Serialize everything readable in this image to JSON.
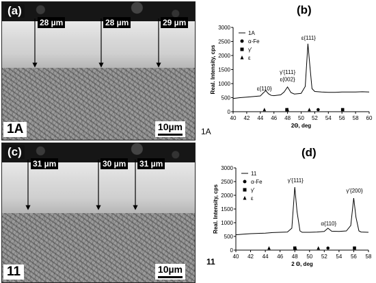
{
  "micrographs": [
    {
      "panel_label": "(a)",
      "measurements": [
        "28 µm",
        "28 µm",
        "29 µm"
      ],
      "sample": "1A",
      "scale_bar": "10µm"
    },
    {
      "panel_label": "(c)",
      "measurements": [
        "31 µm",
        "30 µm",
        "31 µm"
      ],
      "sample": "11",
      "scale_bar": "10µm"
    }
  ],
  "chart_data": [
    {
      "type": "line",
      "panel_label": "(b)",
      "sample_label": "1A",
      "ylabel": "Real. Intensity, cps",
      "xlabel": "2Θ, deg",
      "xlim": [
        40,
        60
      ],
      "ylim": [
        0,
        3000
      ],
      "xticks": [
        40,
        42,
        44,
        46,
        48,
        50,
        52,
        54,
        56,
        58,
        60
      ],
      "yticks": [
        0,
        500,
        1000,
        1500,
        2000,
        2500,
        3000
      ],
      "legend": {
        "placement": "top-left",
        "entries": [
          {
            "label": "1A",
            "marker": "line"
          },
          {
            "label": "α-Fe",
            "marker": "circle"
          },
          {
            "label": "γ'",
            "marker": "square"
          },
          {
            "label": "ε",
            "marker": "triangle"
          }
        ]
      },
      "series": [
        {
          "name": "1A",
          "x": [
            40,
            41,
            42,
            43,
            44,
            44.4,
            44.8,
            45.2,
            45.6,
            46,
            47,
            47.5,
            48,
            48.5,
            49,
            50,
            50.6,
            51.0,
            51.3,
            51.6,
            52,
            53,
            54,
            55,
            56,
            57,
            58,
            59,
            60
          ],
          "y": [
            470,
            500,
            520,
            540,
            560,
            660,
            750,
            640,
            580,
            570,
            600,
            700,
            880,
            680,
            630,
            650,
            900,
            2420,
            1600,
            820,
            720,
            700,
            690,
            690,
            700,
            700,
            700,
            710,
            700
          ]
        }
      ],
      "peak_labels": [
        {
          "text": "ε{110}",
          "x": 44.6,
          "y": 760
        },
        {
          "text": "γ'{111}",
          "x": 48,
          "y": 1340
        },
        {
          "text": "ε{002}",
          "x": 48,
          "y": 1080
        },
        {
          "text": "ε{111}",
          "x": 51.1,
          "y": 2560
        }
      ],
      "phase_markers": [
        {
          "phase": "ε",
          "shape": "triangle",
          "x": 44.6
        },
        {
          "phase": "γ'",
          "shape": "square",
          "x": 47.9
        },
        {
          "phase": "ε",
          "shape": "triangle",
          "x": 48.0
        },
        {
          "phase": "ε",
          "shape": "triangle",
          "x": 51.2
        },
        {
          "phase": "α-Fe",
          "shape": "circle",
          "x": 52.5
        },
        {
          "phase": "γ'",
          "shape": "square",
          "x": 56.1
        }
      ]
    },
    {
      "type": "line",
      "panel_label": "(d)",
      "sample_label": "11",
      "ylabel": "Real. Intensity, cps",
      "xlabel": "2 Θ, deg",
      "xlim": [
        40,
        58
      ],
      "ylim": [
        0,
        3000
      ],
      "xticks": [
        40,
        42,
        44,
        46,
        48,
        50,
        52,
        54,
        56,
        58
      ],
      "yticks": [
        0,
        500,
        1000,
        1500,
        2000,
        2500,
        3000
      ],
      "legend": {
        "placement": "top-left",
        "entries": [
          {
            "label": "11",
            "marker": "line"
          },
          {
            "label": "α-Fe",
            "marker": "circle"
          },
          {
            "label": "γ'",
            "marker": "square"
          },
          {
            "label": "ε",
            "marker": "triangle"
          }
        ]
      },
      "series": [
        {
          "name": "11",
          "x": [
            40,
            41,
            42,
            43,
            44,
            45,
            46,
            47,
            47.6,
            48.0,
            48.3,
            48.7,
            49,
            50,
            51,
            52,
            52.5,
            53,
            54,
            55,
            55.6,
            56.0,
            56.3,
            56.7,
            57,
            58
          ],
          "y": [
            560,
            580,
            600,
            610,
            620,
            640,
            650,
            660,
            800,
            2300,
            1400,
            700,
            650,
            650,
            660,
            680,
            800,
            690,
            680,
            700,
            900,
            1900,
            1200,
            700,
            660,
            650
          ]
        }
      ],
      "peak_labels": [
        {
          "text": "γ'{111}",
          "x": 48.1,
          "y": 2470
        },
        {
          "text": "α{110}",
          "x": 52.6,
          "y": 900
        },
        {
          "text": "γ'{200}",
          "x": 56.1,
          "y": 2100
        }
      ],
      "phase_markers": [
        {
          "phase": "ε",
          "shape": "triangle",
          "x": 44.5
        },
        {
          "phase": "γ'",
          "shape": "square",
          "x": 48.0
        },
        {
          "phase": "ε",
          "shape": "triangle",
          "x": 48.1
        },
        {
          "phase": "ε",
          "shape": "triangle",
          "x": 51.2
        },
        {
          "phase": "α-Fe",
          "shape": "circle",
          "x": 52.5
        },
        {
          "phase": "γ'",
          "shape": "square",
          "x": 56.1
        }
      ]
    }
  ]
}
